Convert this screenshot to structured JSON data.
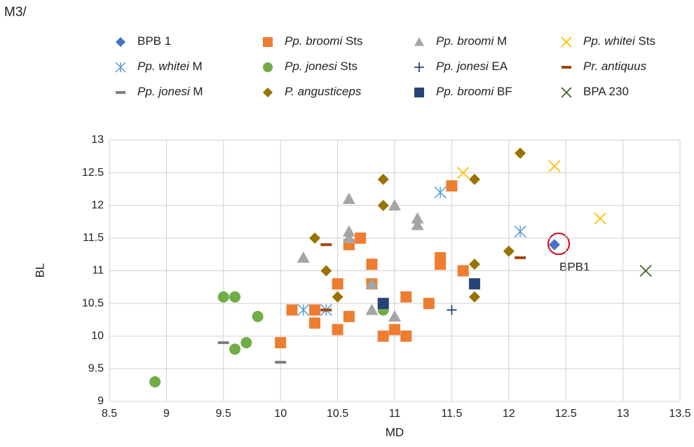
{
  "chart_data": {
    "type": "scatter",
    "title": "M3/",
    "xlabel": "MD",
    "ylabel": "BL",
    "annotation": "BPB1",
    "xlim": [
      8.5,
      13.5
    ],
    "xticks": [
      8.5,
      9,
      9.5,
      10,
      10.5,
      11,
      11.5,
      12,
      12.5,
      13,
      13.5
    ],
    "ylim": [
      9,
      13
    ],
    "yticks": [
      9,
      9.5,
      10,
      10.5,
      11,
      11.5,
      12,
      12.5,
      13
    ],
    "grid": true,
    "series": [
      {
        "name": "BPB 1",
        "color": "#4472c4",
        "marker": "diamond",
        "x": [
          12.4
        ],
        "values": [
          11.4
        ]
      },
      {
        "name": "Pp. broomi Sts",
        "color": "#ed7d31",
        "marker": "square",
        "x": [
          10.1,
          10.3,
          10.3,
          10.0,
          10.5,
          10.5,
          10.6,
          10.6,
          10.7,
          10.8,
          10.8,
          10.9,
          11.0,
          11.1,
          11.1,
          11.3,
          11.4,
          11.4,
          11.5,
          11.6
        ],
        "values": [
          10.4,
          10.4,
          10.2,
          9.9,
          10.8,
          10.1,
          11.4,
          10.3,
          11.5,
          11.1,
          10.8,
          10.0,
          10.1,
          10.6,
          10.0,
          10.5,
          11.2,
          11.1,
          12.3,
          11.0
        ]
      },
      {
        "name": "Pp. broomi M",
        "color": "#a5a5a5",
        "marker": "triangle",
        "x": [
          10.2,
          10.6,
          10.6,
          10.6,
          10.8,
          10.8,
          11.0,
          11.0,
          11.2,
          11.2
        ],
        "values": [
          11.2,
          12.1,
          11.6,
          11.5,
          10.8,
          10.4,
          12.0,
          10.3,
          11.8,
          11.7
        ]
      },
      {
        "name": "Pp. whitei Sts",
        "color": "#ffc000",
        "marker": "x",
        "x": [
          11.6,
          12.4,
          12.8
        ],
        "values": [
          12.5,
          12.6,
          11.8
        ]
      },
      {
        "name": "Pp. whitei M",
        "color": "#5b9bd5",
        "marker": "asterisk",
        "x": [
          10.2,
          10.4,
          11.4,
          12.1
        ],
        "values": [
          10.4,
          10.4,
          12.2,
          11.6
        ]
      },
      {
        "name": "Pp. jonesi Sts",
        "color": "#70ad47",
        "marker": "circle",
        "x": [
          8.9,
          9.5,
          9.6,
          9.6,
          9.7,
          9.8,
          10.9
        ],
        "values": [
          9.3,
          10.6,
          10.6,
          9.8,
          9.9,
          10.3,
          10.4
        ]
      },
      {
        "name": "Pp. jonesi EA",
        "color": "#264478",
        "marker": "plus",
        "x": [
          11.5
        ],
        "values": [
          10.4
        ]
      },
      {
        "name": "Pr. antiquus",
        "color": "#9e480e",
        "marker": "dash",
        "x": [
          10.4,
          10.4,
          12.1
        ],
        "values": [
          11.4,
          10.4,
          11.2
        ]
      },
      {
        "name": "Pp. jonesi M",
        "color": "#7f7f7f",
        "marker": "dash",
        "x": [
          9.5,
          10.0
        ],
        "values": [
          9.9,
          9.6
        ]
      },
      {
        "name": "P. angusticeps",
        "color": "#997300",
        "marker": "diamond",
        "x": [
          10.3,
          10.4,
          10.5,
          10.9,
          10.9,
          11.7,
          11.7,
          11.7,
          12.0,
          12.1
        ],
        "values": [
          11.5,
          11.0,
          10.6,
          12.4,
          12.0,
          12.4,
          11.1,
          10.6,
          11.3,
          12.8
        ]
      },
      {
        "name": "Pp. broomi BF",
        "color": "#264478",
        "marker": "square",
        "x": [
          10.9,
          11.7
        ],
        "values": [
          10.5,
          10.8
        ]
      },
      {
        "name": "BPA 230",
        "color": "#43682b",
        "marker": "x",
        "x": [
          13.2
        ],
        "values": [
          11.0
        ]
      }
    ]
  }
}
